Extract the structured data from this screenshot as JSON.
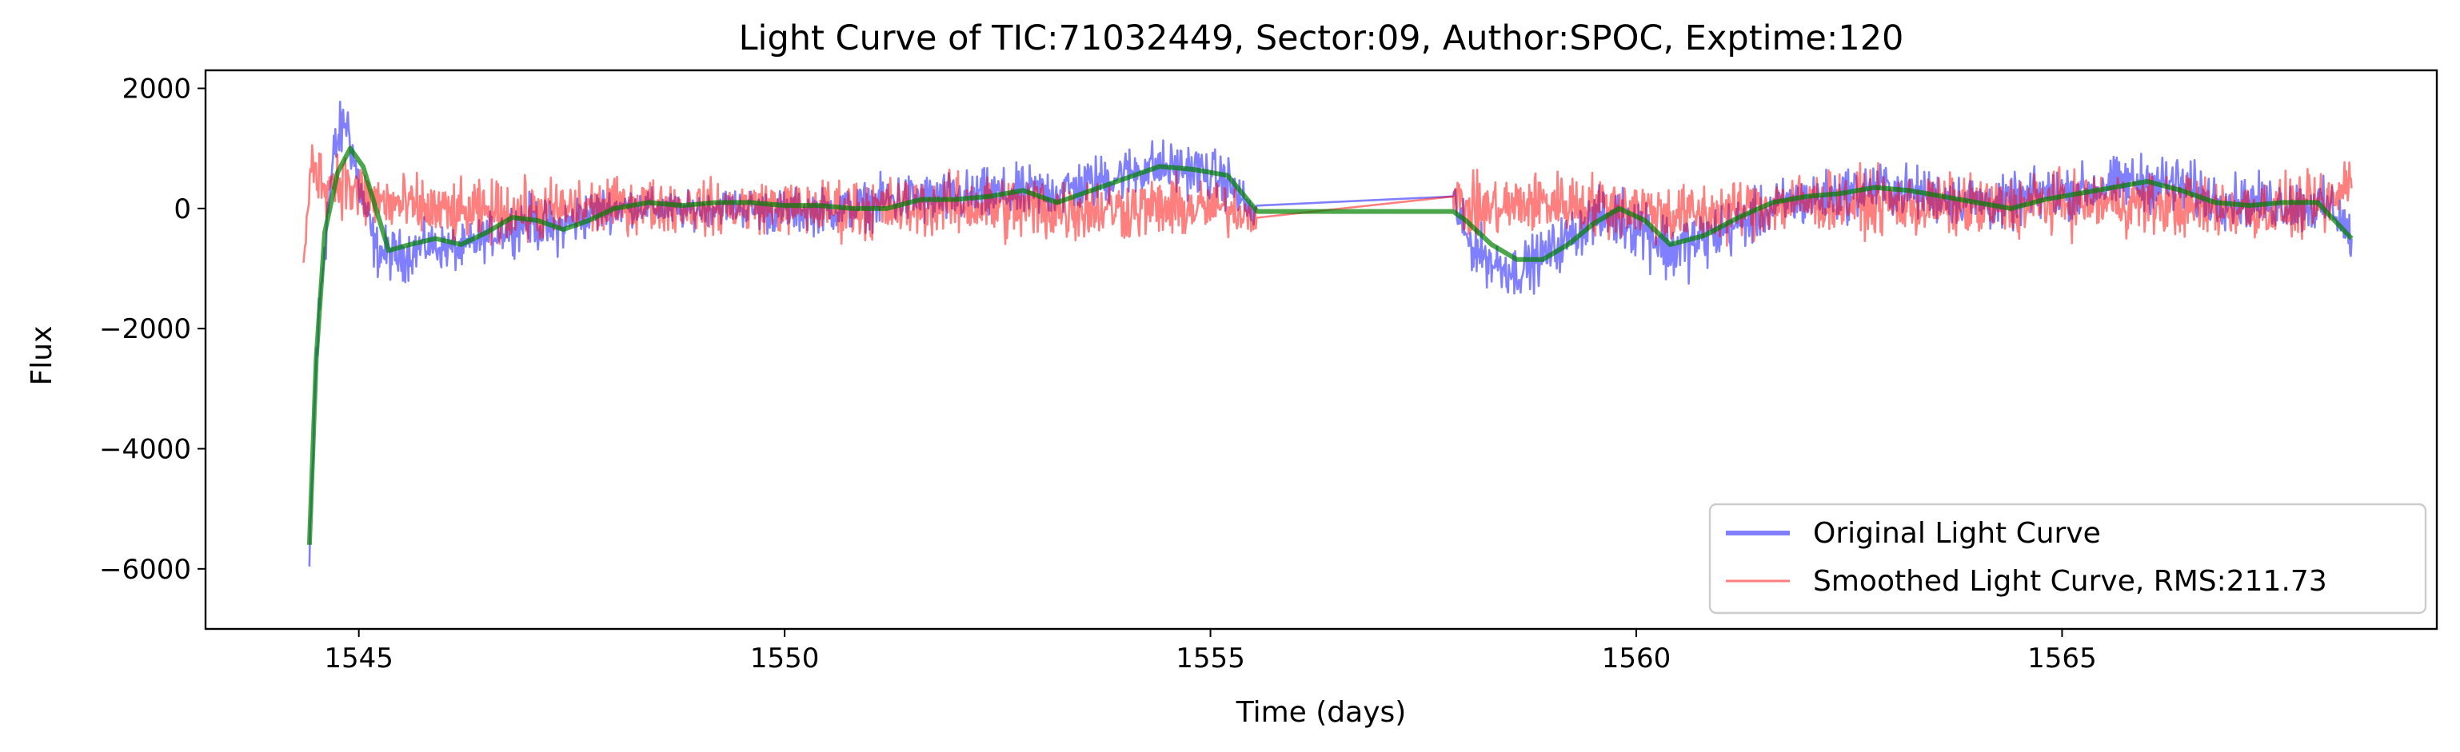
{
  "chart_data": {
    "type": "line",
    "title": "Light Curve of TIC:71032449, Sector:09, Author:SPOC, Exptime:120",
    "xlabel": "Time (days)",
    "ylabel": "Flux",
    "xlim": [
      1543.2,
      1569.4
    ],
    "ylim": [
      -7000,
      2300
    ],
    "xticks": [
      1545,
      1550,
      1555,
      1560,
      1565
    ],
    "xtick_labels": [
      "1545",
      "1550",
      "1555",
      "1560",
      "1565"
    ],
    "yticks": [
      2000,
      0,
      -2000,
      -4000,
      -6000
    ],
    "ytick_labels": [
      "2000",
      "0",
      "−2000",
      "−4000",
      "−6000"
    ],
    "grid": false,
    "legend_position": "lower-right",
    "legend": [
      {
        "label": "Original Light Curve",
        "color": "#0000ff"
      },
      {
        "label": "Smoothed Light Curve, RMS:211.73",
        "color": "#ff0000"
      }
    ],
    "gap": [
      1555.55,
      1557.85
    ],
    "series": [
      {
        "name": "Original Light Curve",
        "color": "#0000ff",
        "opacity": 0.5,
        "band": true,
        "x": [
          1544.42,
          1544.5,
          1544.6,
          1544.72,
          1544.85,
          1545.0,
          1545.2,
          1545.5,
          1545.8,
          1546.2,
          1546.6,
          1547.0,
          1547.3,
          1547.6,
          1547.9,
          1548.3,
          1548.8,
          1549.3,
          1549.8,
          1550.3,
          1550.8,
          1551.3,
          1551.8,
          1552.3,
          1552.8,
          1553.3,
          1553.8,
          1554.3,
          1554.8,
          1555.2,
          1555.5,
          1557.85,
          1558.0,
          1558.3,
          1558.6,
          1558.9,
          1559.2,
          1559.5,
          1559.8,
          1560.1,
          1560.4,
          1560.8,
          1561.3,
          1561.8,
          1562.3,
          1562.8,
          1563.3,
          1563.8,
          1564.3,
          1564.8,
          1565.3,
          1565.8,
          1566.3,
          1566.8,
          1567.3,
          1567.8,
          1568.2,
          1568.4
        ],
        "mid": [
          -6000,
          -2500,
          -500,
          1000,
          1500,
          400,
          -700,
          -800,
          -600,
          -700,
          -400,
          -200,
          -350,
          -150,
          0,
          50,
          -50,
          50,
          -50,
          -50,
          0,
          150,
          150,
          200,
          250,
          300,
          500,
          700,
          650,
          450,
          -100,
          200,
          -500,
          -900,
          -1050,
          -800,
          -500,
          -150,
          -150,
          -300,
          -700,
          -500,
          -200,
          100,
          200,
          350,
          250,
          150,
          50,
          250,
          300,
          450,
          400,
          150,
          100,
          50,
          0,
          -500
        ],
        "amp": [
          300,
          400,
          400,
          350,
          350,
          300,
          300,
          300,
          250,
          250,
          250,
          300,
          300,
          300,
          250,
          200,
          200,
          200,
          250,
          250,
          250,
          300,
          300,
          300,
          300,
          300,
          300,
          300,
          300,
          300,
          200,
          250,
          300,
          300,
          300,
          300,
          300,
          300,
          350,
          400,
          400,
          350,
          300,
          300,
          300,
          300,
          300,
          300,
          300,
          300,
          300,
          300,
          350,
          300,
          300,
          300,
          300,
          300
        ]
      },
      {
        "name": "Smoothed Light Curve, RMS:211.73",
        "color": "#ff0000",
        "opacity": 0.5,
        "band": true,
        "x": [
          1544.35,
          1544.45,
          1544.6,
          1544.8,
          1545.0,
          1545.3,
          1545.7,
          1546.2,
          1546.7,
          1547.2,
          1547.7,
          1548.2,
          1548.7,
          1549.2,
          1549.7,
          1550.2,
          1550.7,
          1551.2,
          1551.7,
          1552.2,
          1552.7,
          1553.2,
          1553.7,
          1554.2,
          1554.7,
          1555.2,
          1555.5,
          1557.85,
          1558.0,
          1558.4,
          1558.8,
          1559.2,
          1559.6,
          1560.0,
          1560.4,
          1560.8,
          1561.3,
          1561.8,
          1562.3,
          1562.8,
          1563.3,
          1563.8,
          1564.3,
          1564.8,
          1565.3,
          1565.8,
          1566.3,
          1566.8,
          1567.3,
          1567.8,
          1568.2,
          1568.4
        ],
        "mid": [
          -1000,
          800,
          400,
          500,
          200,
          100,
          0,
          -100,
          -50,
          -50,
          0,
          50,
          50,
          0,
          50,
          0,
          0,
          0,
          50,
          50,
          0,
          0,
          0,
          0,
          0,
          0,
          -100,
          200,
          0,
          0,
          100,
          100,
          50,
          0,
          -100,
          -100,
          0,
          100,
          100,
          100,
          50,
          50,
          0,
          100,
          100,
          100,
          50,
          0,
          0,
          0,
          100,
          600
        ],
        "amp": [
          150,
          300,
          350,
          400,
          400,
          350,
          350,
          350,
          350,
          350,
          350,
          300,
          300,
          300,
          300,
          300,
          350,
          350,
          350,
          350,
          400,
          400,
          350,
          350,
          350,
          300,
          200,
          250,
          350,
          350,
          350,
          350,
          350,
          350,
          350,
          350,
          350,
          350,
          350,
          350,
          350,
          350,
          350,
          350,
          350,
          350,
          350,
          350,
          350,
          350,
          350,
          300
        ]
      },
      {
        "name": "",
        "color": "#008000",
        "opacity": 0.7,
        "band": false,
        "x": [
          1544.42,
          1544.5,
          1544.6,
          1544.75,
          1544.9,
          1545.05,
          1545.2,
          1545.35,
          1545.6,
          1545.9,
          1546.2,
          1546.5,
          1546.8,
          1547.1,
          1547.4,
          1547.7,
          1548.0,
          1548.4,
          1548.8,
          1549.2,
          1549.6,
          1550.0,
          1550.4,
          1550.8,
          1551.2,
          1551.6,
          1552.0,
          1552.4,
          1552.8,
          1553.2,
          1553.6,
          1554.0,
          1554.4,
          1554.8,
          1555.2,
          1555.55,
          1557.85,
          1558.0,
          1558.3,
          1558.6,
          1558.9,
          1559.2,
          1559.5,
          1559.8,
          1560.1,
          1560.4,
          1560.8,
          1561.2,
          1561.6,
          1562.0,
          1562.4,
          1562.8,
          1563.2,
          1563.6,
          1564.0,
          1564.4,
          1564.8,
          1565.2,
          1565.6,
          1566.0,
          1566.4,
          1566.8,
          1567.2,
          1567.6,
          1568.0,
          1568.4
        ],
        "y": [
          -5600,
          -2500,
          -400,
          600,
          1000,
          700,
          0,
          -700,
          -600,
          -500,
          -600,
          -400,
          -150,
          -200,
          -350,
          -200,
          0,
          100,
          50,
          100,
          100,
          50,
          50,
          0,
          0,
          150,
          150,
          200,
          300,
          100,
          300,
          500,
          700,
          650,
          550,
          -50,
          -50,
          -200,
          -600,
          -850,
          -850,
          -600,
          -250,
          0,
          -200,
          -600,
          -450,
          -150,
          100,
          200,
          250,
          350,
          300,
          200,
          100,
          0,
          150,
          250,
          350,
          450,
          300,
          100,
          50,
          100,
          100,
          -500
        ]
      }
    ]
  }
}
